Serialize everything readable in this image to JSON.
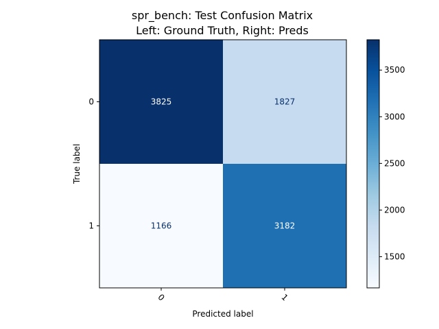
{
  "chart_data": {
    "type": "heatmap",
    "title_line1": "spr_bench: Test Confusion Matrix",
    "title_line2": "Left: Ground Truth, Right: Preds",
    "xlabel": "Predicted label",
    "ylabel": "True label",
    "x_categories": [
      "0",
      "1"
    ],
    "y_categories": [
      "0",
      "1"
    ],
    "matrix": [
      [
        3825,
        1827
      ],
      [
        1166,
        3182
      ]
    ],
    "colormap": "Blues",
    "color_range": [
      1166,
      3825
    ],
    "colorbar_ticks": [
      1500,
      2000,
      2500,
      3000,
      3500
    ],
    "grid": false
  }
}
